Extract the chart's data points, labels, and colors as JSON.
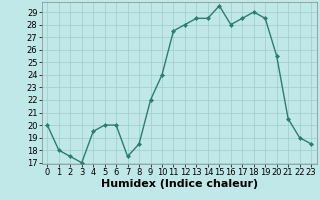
{
  "x": [
    0,
    1,
    2,
    3,
    4,
    5,
    6,
    7,
    8,
    9,
    10,
    11,
    12,
    13,
    14,
    15,
    16,
    17,
    18,
    19,
    20,
    21,
    22,
    23
  ],
  "y": [
    20,
    18,
    17.5,
    17,
    19.5,
    20,
    20,
    17.5,
    18.5,
    22,
    24,
    27.5,
    28,
    28.5,
    28.5,
    29.5,
    28,
    28.5,
    29,
    28.5,
    25.5,
    20.5,
    19,
    18.5
  ],
  "line_color": "#2d7d6e",
  "marker": "D",
  "marker_size": 2,
  "bg_color": "#c0e8e8",
  "grid_color": "#a0cccc",
  "xlabel": "Humidex (Indice chaleur)",
  "xlabel_fontsize": 8,
  "ylim_min": 17,
  "ylim_max": 29.5,
  "yticks": [
    17,
    18,
    19,
    20,
    21,
    22,
    23,
    24,
    25,
    26,
    27,
    28,
    29
  ],
  "xticks": [
    0,
    1,
    2,
    3,
    4,
    5,
    6,
    7,
    8,
    9,
    10,
    11,
    12,
    13,
    14,
    15,
    16,
    17,
    18,
    19,
    20,
    21,
    22,
    23
  ],
  "tick_fontsize": 6,
  "linewidth": 1.0
}
